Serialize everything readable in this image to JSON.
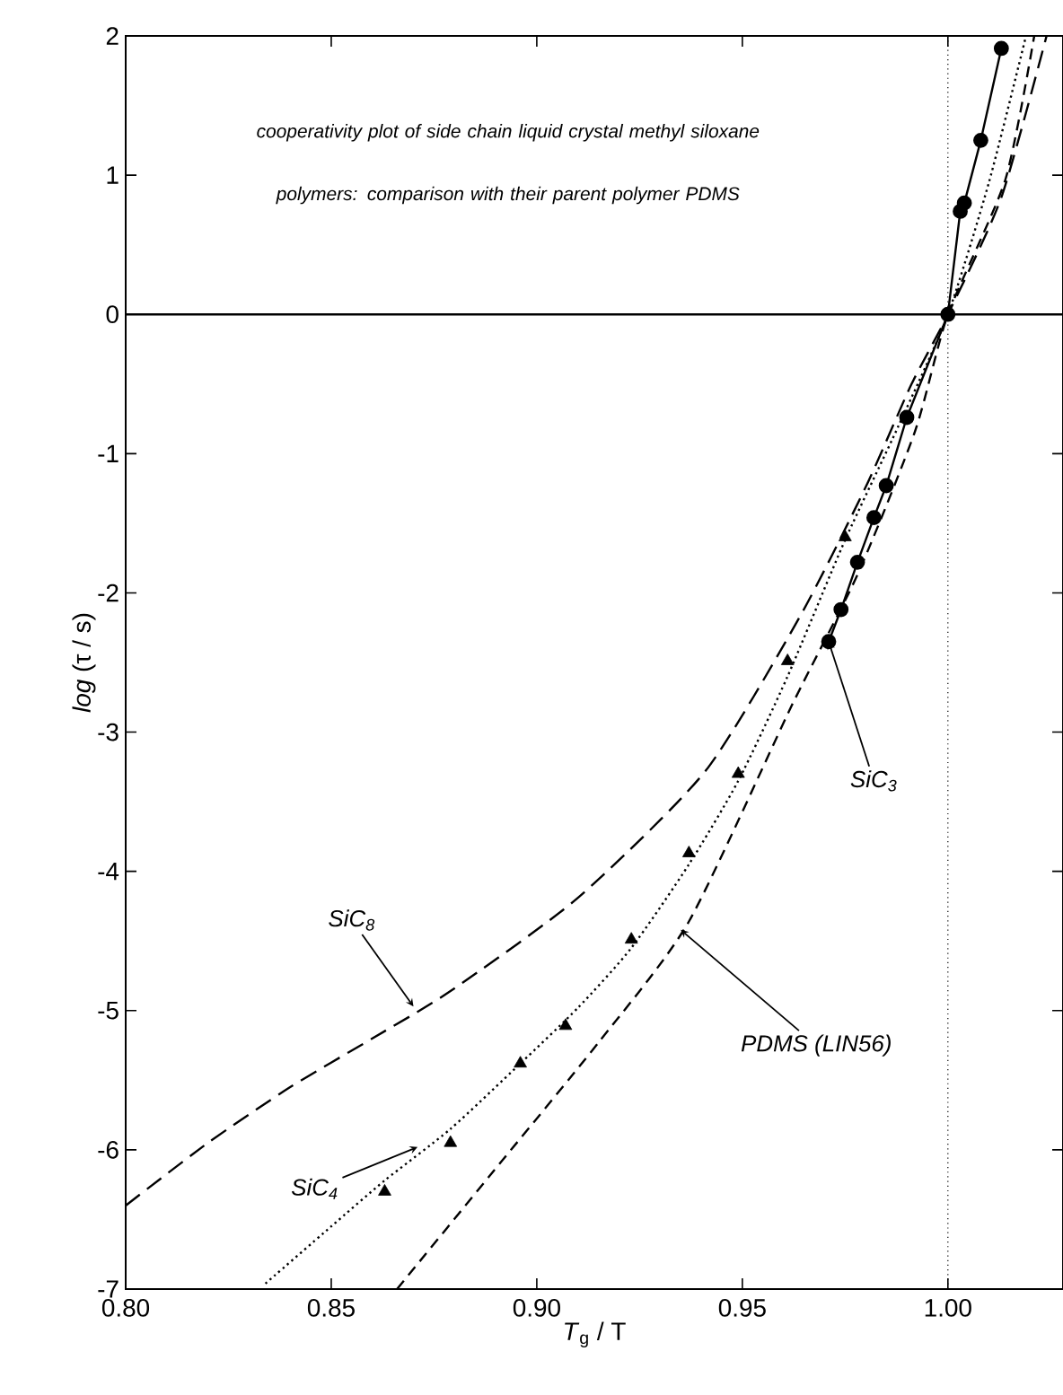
{
  "chart_data": {
    "type": "line",
    "title": "cooperativity plot of side chain liquid crystal methyl siloxane polymers: comparison with their parent polymer PDMS",
    "xlabel": "*T*$_{g}$ / T",
    "ylabel": "*log* (τ / s)",
    "xlim": [
      0.8,
      1.028
    ],
    "ylim": [
      -7,
      2
    ],
    "xticks": [
      {
        "value": 0.8,
        "label": "0.80"
      },
      {
        "value": 0.85,
        "label": "0.85"
      },
      {
        "value": 0.9,
        "label": "0.90"
      },
      {
        "value": 0.95,
        "label": "0.95"
      },
      {
        "value": 1.0,
        "label": "1.00"
      }
    ],
    "yticks": [
      -7,
      -6,
      -5,
      -4,
      -3,
      -2,
      -1,
      0,
      1,
      2
    ],
    "grid": false,
    "ref_lines": [
      {
        "axis": "y",
        "value": 0,
        "line_style": "solid"
      },
      {
        "axis": "x",
        "value": 1.0,
        "line_style": "dotted"
      }
    ],
    "series": [
      {
        "color": "#000000",
        "marker": "circle",
        "line_style": "solid",
        "x": [
          0.971,
          0.974,
          0.978,
          0.982,
          0.985,
          0.99,
          1.0,
          1.003,
          1.004,
          1.008,
          1.013
        ],
        "values": [
          -2.35,
          -2.12,
          -1.78,
          -1.46,
          -1.23,
          -0.74,
          0,
          0.74,
          0.8,
          1.25,
          1.91
        ]
      },
      {
        "type": "scatter",
        "color": "#000000",
        "marker": "triangle",
        "x": [
          0.863,
          0.879,
          0.896,
          0.907,
          0.923,
          0.937,
          0.949,
          0.961,
          0.975,
          1.0
        ],
        "values": [
          -6.3,
          -5.95,
          -5.38,
          -5.11,
          -4.49,
          -3.87,
          -3.3,
          -2.49,
          -1.6,
          0
        ]
      },
      {
        "color": "#000000",
        "marker": "none",
        "line_style": "dotted",
        "x": [
          0.834,
          0.85,
          0.863,
          0.879,
          0.896,
          0.91,
          0.923,
          0.937,
          0.949,
          0.961,
          0.975,
          0.988,
          1.0,
          1.01,
          1.019
        ],
        "values": [
          -6.96,
          -6.55,
          -6.22,
          -5.85,
          -5.38,
          -4.98,
          -4.55,
          -3.95,
          -3.35,
          -2.6,
          -1.62,
          -0.8,
          0,
          0.95,
          2.0
        ]
      },
      {
        "color": "#000000",
        "marker": "none",
        "line_style": "dashed",
        "x": [
          0.8,
          0.82,
          0.84,
          0.86,
          0.879,
          0.91,
          0.941,
          0.964,
          0.98,
          0.991,
          1.0,
          1.013,
          1.024
        ],
        "values": [
          -6.4,
          -5.95,
          -5.55,
          -5.2,
          -4.86,
          -4.19,
          -3.28,
          -2.17,
          -1.24,
          -0.51,
          0,
          0.84,
          2.0
        ]
      },
      {
        "color": "#000000",
        "marker": "none",
        "line_style": "dashed",
        "x": [
          0.866,
          0.889,
          0.915,
          0.937,
          0.962,
          0.978,
          0.992,
          1.0,
          1.014,
          1.021
        ],
        "values": [
          -7.0,
          -6.17,
          -5.23,
          -4.36,
          -2.81,
          -1.87,
          -0.84,
          0,
          0.97,
          2.0
        ]
      }
    ],
    "annotations": [
      {
        "text": "SiC$_{8}$",
        "x": 0.87,
        "y": -4.97
      },
      {
        "text": "SiC$_{4}$",
        "x": 0.871,
        "y": -5.98
      },
      {
        "text": "SiC$_{3}$",
        "x": 0.971,
        "y": -2.35
      },
      {
        "text": "PDMS (LIN56)",
        "x": 0.935,
        "y": -4.42
      }
    ]
  }
}
